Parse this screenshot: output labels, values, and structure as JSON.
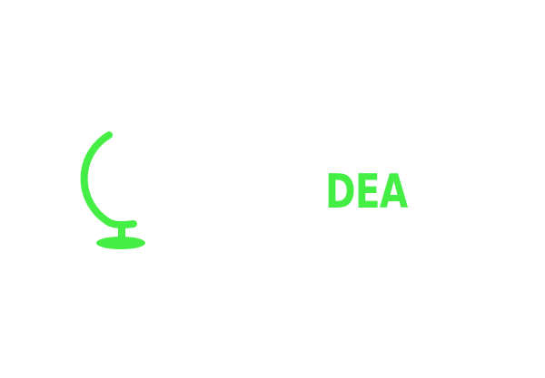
{
  "logo": {
    "text": "DEA",
    "icon": "globe-stand-icon",
    "accent_color": "#44ee44",
    "background_color": "#ffffff"
  }
}
